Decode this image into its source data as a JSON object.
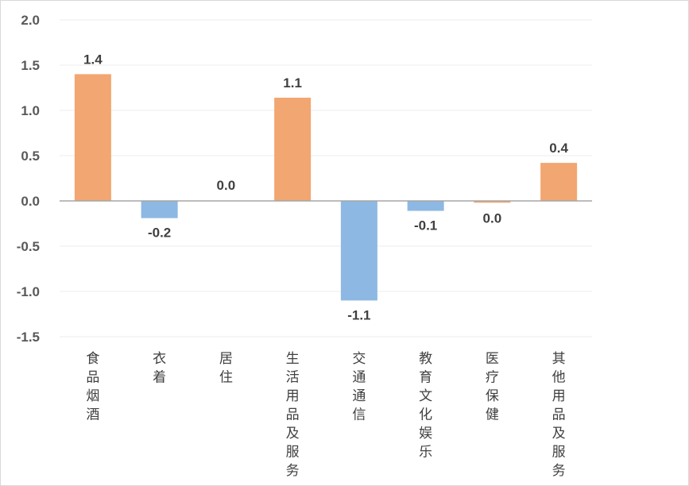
{
  "chart_data": {
    "type": "bar",
    "title": "",
    "xlabel": "",
    "ylabel": "",
    "categories": [
      "食品烟酒",
      "衣着",
      "居住",
      "生活用品及服务",
      "交通通信",
      "教育文化娱乐",
      "医疗保健",
      "其他用品及服务"
    ],
    "values": [
      1.4,
      -0.2,
      0.0,
      1.1,
      -1.1,
      -0.1,
      0.0,
      0.4
    ],
    "bar_values": [
      1.4,
      -0.19,
      0.0,
      1.14,
      -1.1,
      -0.11,
      -0.02,
      0.42
    ],
    "data_labels": [
      "1.4",
      "-0.2",
      "0.0",
      "1.1",
      "-1.1",
      "-0.1",
      "0.0",
      "0.4"
    ],
    "ylim": [
      -1.5,
      2.0
    ],
    "yticks": [
      2.0,
      1.5,
      1.0,
      0.5,
      0.0,
      -0.5,
      -1.0,
      -1.5
    ],
    "ytick_labels": [
      "2.0",
      "1.5",
      "1.0",
      "0.5",
      "0.0",
      "-0.5",
      "-1.0",
      "-1.5"
    ],
    "grid": true,
    "legend": "none",
    "colors": {
      "positive": "#f2a671",
      "negative": "#8db8e3",
      "axis": "#a6a6a6",
      "grid": "#eeeeee"
    }
  }
}
